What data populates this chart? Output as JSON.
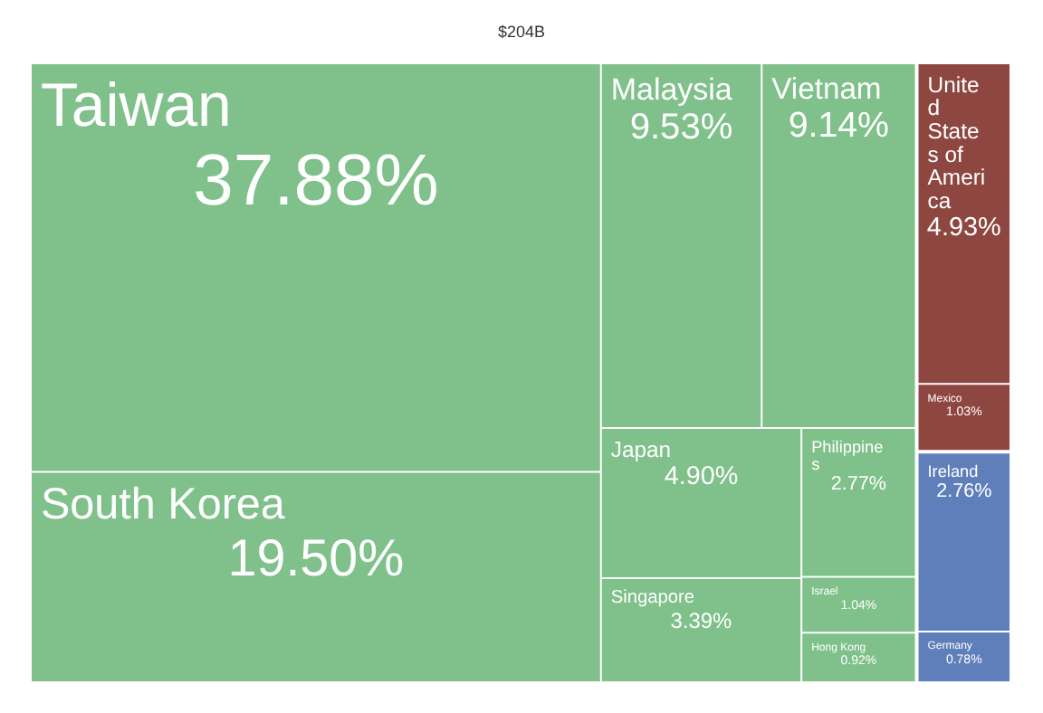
{
  "chart_data": {
    "type": "other",
    "title": "$204B",
    "categories": [
      "Taiwan",
      "South Korea",
      "Malaysia",
      "Vietnam",
      "Japan",
      "Singapore",
      "Philippines",
      "Israel",
      "Hong Kong",
      "United States of America",
      "Mexico",
      "Ireland",
      "Germany"
    ],
    "values": [
      37.88,
      19.5,
      9.53,
      9.14,
      4.9,
      3.39,
      2.77,
      1.04,
      0.92,
      4.93,
      1.03,
      2.76,
      0.78
    ],
    "value_labels": [
      "37.88%",
      "19.50%",
      "9.53%",
      "9.14%",
      "4.90%",
      "3.39%",
      "2.77%",
      "1.04%",
      "0.92%",
      "4.93%",
      "1.03%",
      "2.76%",
      "0.78%"
    ],
    "colors": [
      "#7fc08b",
      "#7fc08b",
      "#7fc08b",
      "#7fc08b",
      "#7fc08b",
      "#7fc08b",
      "#7fc08b",
      "#7fc08b",
      "#7fc08b",
      "#8e4640",
      "#8e4640",
      "#5f7fbb",
      "#5f7fbb"
    ]
  }
}
